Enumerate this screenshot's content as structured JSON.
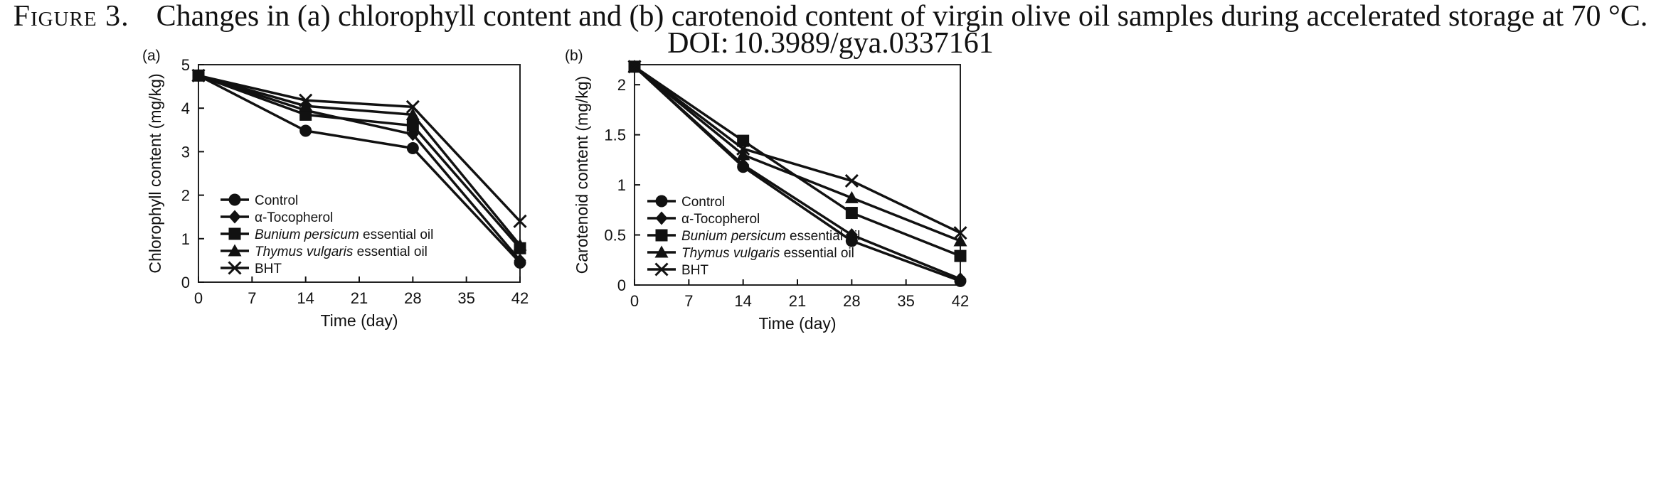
{
  "caption": {
    "figure_label": "Figure 3.",
    "text": "Changes in (a) chlorophyll content and (b) carotenoid content of virgin olive oil samples during accelerated storage at 70 °C.",
    "doi_label": "DOI:",
    "doi_value": "10.3989/gya.0337161"
  },
  "chart_data": [
    {
      "panel": "(a)",
      "type": "line",
      "xlabel": "Time (day)",
      "ylabel": "Chlorophyll content (mg/kg)",
      "x": [
        0,
        14,
        28,
        42
      ],
      "xticks": [
        0,
        7,
        14,
        21,
        28,
        35,
        42
      ],
      "xlim": [
        0,
        42
      ],
      "ylim": [
        0,
        5
      ],
      "yticks": [
        0,
        1,
        2,
        3,
        4,
        5
      ],
      "ytick_labels": [
        "0",
        "1",
        "2",
        "3",
        "4",
        "5"
      ],
      "legend_position": "bottom-left",
      "grid": false,
      "series": [
        {
          "name": "Control",
          "marker": "circle",
          "values": [
            4.75,
            3.48,
            3.08,
            0.45
          ]
        },
        {
          "name": "α-Tocopherol",
          "marker": "diamond",
          "values": [
            4.75,
            3.95,
            3.4,
            0.5
          ]
        },
        {
          "name": "Bunium persicum essential oil",
          "marker": "square",
          "values": [
            4.75,
            3.85,
            3.6,
            0.78
          ]
        },
        {
          "name": "Thymus vulgaris essential oil",
          "marker": "triangle",
          "values": [
            4.75,
            4.05,
            3.85,
            0.85
          ]
        },
        {
          "name": "BHT",
          "marker": "x",
          "values": [
            4.75,
            4.18,
            4.03,
            1.4
          ]
        }
      ]
    },
    {
      "panel": "(b)",
      "type": "line",
      "xlabel": "Time (day)",
      "ylabel": "Carotenoid content (mg/kg)",
      "x": [
        0,
        14,
        28,
        42
      ],
      "xticks": [
        0,
        7,
        14,
        21,
        28,
        35,
        42
      ],
      "xlim": [
        0,
        42
      ],
      "ylim": [
        0,
        2.2
      ],
      "yticks": [
        0,
        0.5,
        1,
        1.5,
        2
      ],
      "ytick_labels": [
        "0",
        "0.5",
        "1",
        "1.5",
        "2"
      ],
      "legend_position": "bottom-left",
      "grid": false,
      "series": [
        {
          "name": "Control",
          "marker": "circle",
          "values": [
            2.18,
            1.18,
            0.44,
            0.04
          ]
        },
        {
          "name": "α-Tocopherol",
          "marker": "diamond",
          "values": [
            2.18,
            1.2,
            0.5,
            0.06
          ]
        },
        {
          "name": "Bunium persicum essential oil",
          "marker": "square",
          "values": [
            2.18,
            1.44,
            0.72,
            0.29
          ]
        },
        {
          "name": "Thymus vulgaris essential oil",
          "marker": "triangle",
          "values": [
            2.18,
            1.3,
            0.87,
            0.44
          ]
        },
        {
          "name": "BHT",
          "marker": "x",
          "values": [
            2.18,
            1.36,
            1.04,
            0.52
          ]
        }
      ]
    }
  ],
  "legend_italic_parts": {
    "Bunium persicum essential oil": [
      "Bunium persicum",
      " essential oil"
    ],
    "Thymus vulgaris essential oil": [
      "Thymus vulgaris",
      " essential oil"
    ]
  },
  "colors": {
    "lines": "#111111",
    "axes": "#222222",
    "background": "#ffffff"
  }
}
